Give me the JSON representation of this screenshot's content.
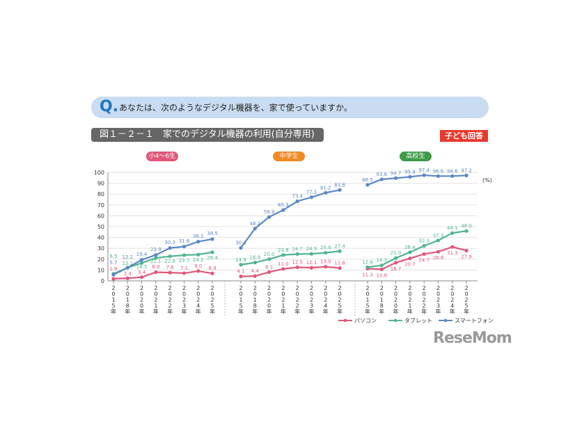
{
  "question": {
    "mark": "Q.",
    "text": "あなたは、次のようなデジタル機器を、家で使っていますか。"
  },
  "figure_title": "図１－２－１　家でのデジタル機器の利用(自分専用)",
  "badge": "子ども回答",
  "logo": "ReseMom",
  "chart_data": {
    "type": "line",
    "unit": "(%)",
    "ylim": [
      0,
      100
    ],
    "yticks": [
      0,
      10,
      20,
      30,
      40,
      50,
      60,
      70,
      80,
      90,
      100
    ],
    "grid": true,
    "legend_position": "bottom-right",
    "categories": [
      "2015年",
      "2018年",
      "2020年",
      "2021年",
      "2022年",
      "2023年",
      "2024年",
      "2025年"
    ],
    "colors": {
      "パソコン": "#e0567a",
      "タブレット": "#4fb58e",
      "スマートフォン": "#5b87c5"
    },
    "groups": [
      {
        "name": "小4～6生",
        "color": "#e0567a",
        "series": [
          {
            "name": "パソコン",
            "values": [
              1.9,
              2.4,
              3.4,
              8.0,
              7.6,
              7.1,
              9.0,
              6.9
            ]
          },
          {
            "name": "タブレット",
            "values": [
              6.5,
              12.1,
              16.5,
              21.1,
              22.6,
              23.7,
              24.2,
              26.4
            ]
          },
          {
            "name": "スマートフォン",
            "values": [
              5.7,
              12.2,
              19.4,
              23.9,
              30.3,
              31.6,
              36.2,
              38.5
            ]
          }
        ]
      },
      {
        "name": "中学生",
        "color": "#f08a24",
        "series": [
          {
            "name": "パソコン",
            "values": [
              4.1,
              4.4,
              8.1,
              11.0,
              12.5,
              12.1,
              13.0,
              11.8
            ]
          },
          {
            "name": "タブレット",
            "values": [
              14.9,
              16.9,
              20.0,
              23.8,
              24.7,
              24.9,
              25.9,
              27.4
            ]
          },
          {
            "name": "スマートフォン",
            "values": [
              30.4,
              48.2,
              58.9,
              65.3,
              73.4,
              77.1,
              81.2,
              83.8
            ]
          }
        ]
      },
      {
        "name": "高校生",
        "color": "#3f9a48",
        "series": [
          {
            "name": "パソコン",
            "values": [
              11.3,
              10.6,
              16.7,
              20.7,
              24.7,
              26.8,
              31.3,
              27.9
            ]
          },
          {
            "name": "タブレット",
            "values": [
              12.6,
              14.3,
              21.0,
              26.4,
              32.3,
              37.3,
              44.1,
              46.0
            ]
          },
          {
            "name": "スマートフォン",
            "values": [
              88.5,
              93.6,
              94.7,
              95.9,
              97.4,
              96.6,
              96.6,
              97.2
            ]
          }
        ]
      }
    ]
  }
}
